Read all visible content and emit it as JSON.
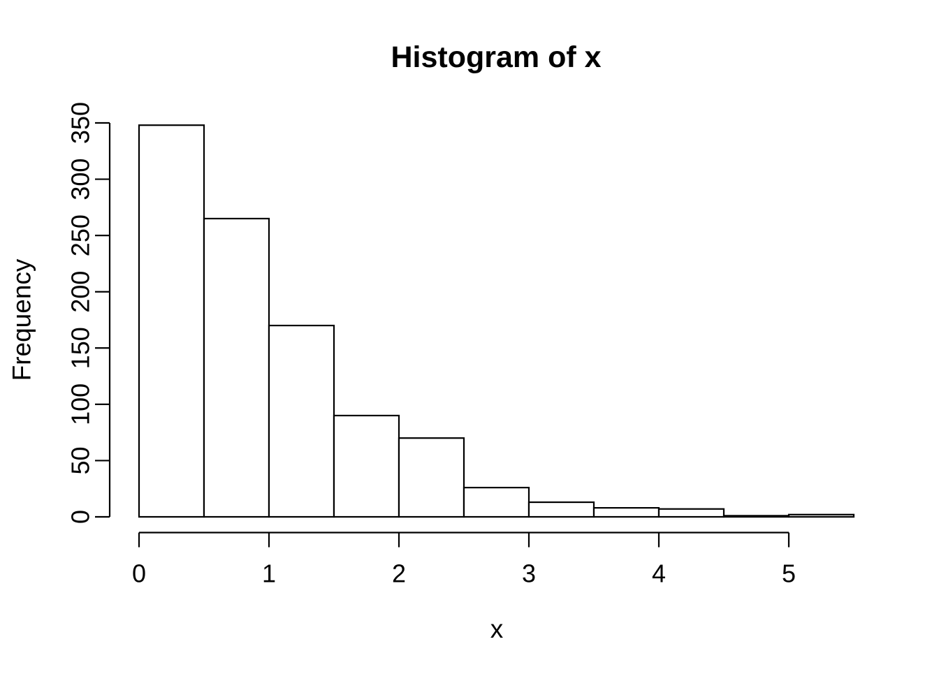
{
  "figure": {
    "background": "#ffffff"
  },
  "chart_data": {
    "type": "bar",
    "chart_kind": "histogram",
    "title": "Histogram of x",
    "xlabel": "x",
    "ylabel": "Frequency",
    "bin_breaks": [
      0,
      0.5,
      1,
      1.5,
      2,
      2.5,
      3,
      3.5,
      4,
      4.5,
      5,
      5.5
    ],
    "counts": [
      348,
      265,
      170,
      90,
      70,
      26,
      13,
      8,
      7,
      1,
      2
    ],
    "x_ticks": [
      0,
      1,
      2,
      3,
      4,
      5
    ],
    "y_ticks": [
      0,
      50,
      100,
      150,
      200,
      250,
      300,
      350
    ],
    "xlim": [
      0,
      5.5
    ],
    "ylim": [
      0,
      350
    ],
    "grid": false,
    "legend_position": "none",
    "bar_fill": "#ffffff",
    "stroke_color": "#000000"
  }
}
